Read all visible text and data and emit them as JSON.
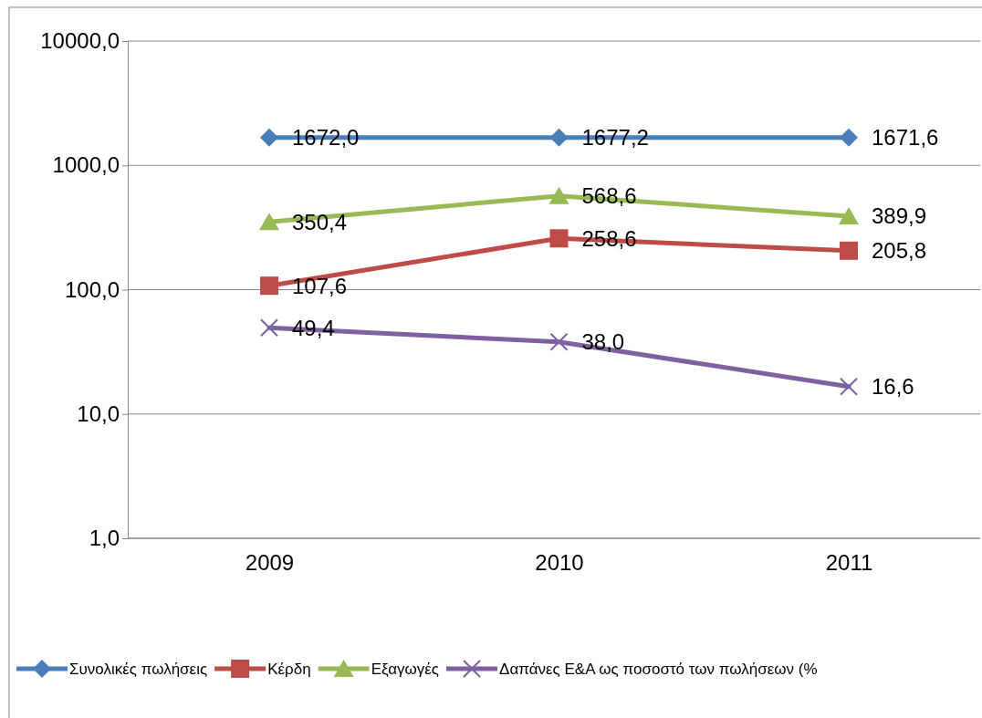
{
  "chart_data": {
    "type": "line",
    "categories": [
      "2009",
      "2010",
      "2011"
    ],
    "log": true,
    "ylim": [
      1,
      10000
    ],
    "yticks": [
      {
        "value": 1,
        "label": "1,0"
      },
      {
        "value": 10,
        "label": "10,0"
      },
      {
        "value": 100,
        "label": "100,0"
      },
      {
        "value": 1000,
        "label": "1000,0"
      },
      {
        "value": 10000,
        "label": "10000,0"
      }
    ],
    "grid": "y",
    "legend": "bottom",
    "series": [
      {
        "name": "Συνολικές πωλήσεις",
        "color": "#4a7ebb",
        "marker": "diamond",
        "values": [
          1672.0,
          1677.2,
          1671.6
        ],
        "value_labels": [
          "1672,0",
          "1677,2",
          "1671,6"
        ]
      },
      {
        "name": "Κέρδη",
        "color": "#be4b48",
        "marker": "square",
        "values": [
          107.6,
          258.6,
          205.8
        ],
        "value_labels": [
          "107,6",
          "258,6",
          "205,8"
        ]
      },
      {
        "name": "Εξαγωγές",
        "color": "#98b954",
        "marker": "triangle",
        "values": [
          350.4,
          568.6,
          389.9
        ],
        "value_labels": [
          "350,4",
          "568,6",
          "389,9"
        ]
      },
      {
        "name": "Δαπάνες Ε&Α ως ποσοστό των πωλήσεων (%",
        "color": "#7d60a0",
        "marker": "cross",
        "values": [
          49.4,
          38.0,
          16.6
        ],
        "value_labels": [
          "49,4",
          "38,0",
          "16,6"
        ]
      }
    ]
  }
}
